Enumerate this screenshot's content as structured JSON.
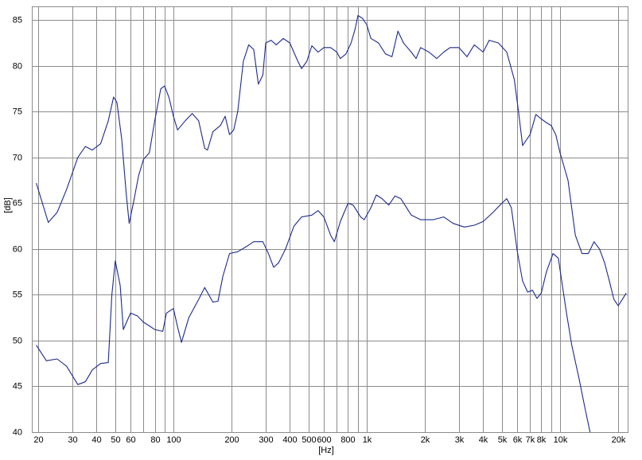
{
  "chart_data": {
    "type": "line",
    "xlabel": "[Hz]",
    "ylabel": "[dB]",
    "xscale": "log",
    "grid": true,
    "xlim": [
      18.5,
      22600
    ],
    "ylim": [
      40,
      86.5
    ],
    "yticks": [
      40,
      45,
      50,
      55,
      60,
      65,
      70,
      75,
      80,
      85
    ],
    "xticks": [
      20,
      30,
      40,
      50,
      60,
      80,
      100,
      200,
      300,
      400,
      500,
      600,
      800,
      {
        "value": 1000,
        "label": "1k"
      },
      {
        "value": 2000,
        "label": "2k"
      },
      {
        "value": 3000,
        "label": "3k"
      },
      {
        "value": 4000,
        "label": "4k"
      },
      {
        "value": 5000,
        "label": "5k"
      },
      {
        "value": 6000,
        "label": "6k"
      },
      {
        "value": 7000,
        "label": "7k"
      },
      {
        "value": 8000,
        "label": "8k"
      },
      {
        "value": 10000,
        "label": "10k"
      },
      {
        "value": 20000,
        "label": "20k"
      }
    ],
    "xgrid": [
      70,
      90,
      700,
      900,
      9000
    ],
    "series": [
      {
        "color": "#1c2a8c",
        "x": [
          19.5,
          22.5,
          25,
          28,
          32,
          35,
          38,
          42,
          46,
          49,
          51,
          54,
          57,
          59,
          62,
          66,
          70,
          75,
          80,
          86,
          90,
          95,
          100,
          105,
          115,
          125,
          135,
          145,
          150,
          160,
          175,
          185,
          195,
          205,
          215,
          230,
          245,
          260,
          275,
          290,
          300,
          320,
          340,
          370,
          400,
          440,
          460,
          490,
          520,
          560,
          600,
          650,
          700,
          730,
          780,
          830,
          870,
          900,
          950,
          1000,
          1050,
          1150,
          1250,
          1350,
          1450,
          1550,
          1700,
          1800,
          1900,
          2100,
          2300,
          2500,
          2700,
          3000,
          3300,
          3600,
          4000,
          4300,
          4800,
          5300,
          5800,
          6100,
          6400,
          7000,
          7500,
          8000,
          8500,
          9000,
          9500,
          10000,
          11000,
          12000,
          13000,
          14000,
          15000,
          16000,
          17000,
          18000,
          19000,
          20000,
          21000,
          22000
        ],
        "values": [
          67.2,
          62.9,
          64,
          66.5,
          70,
          71.2,
          70.8,
          71.5,
          74,
          76.6,
          76,
          72,
          66,
          62.8,
          65,
          68,
          69.8,
          70.5,
          74,
          77.5,
          77.8,
          76.5,
          74.5,
          73,
          74,
          74.8,
          74,
          71,
          70.8,
          72.8,
          73.5,
          74.5,
          72.5,
          73,
          75,
          80.5,
          82.3,
          81.8,
          78,
          79,
          82.5,
          82.8,
          82.3,
          83,
          82.5,
          80.5,
          79.7,
          80.5,
          82.2,
          81.5,
          82,
          82,
          81.5,
          80.8,
          81.3,
          82.5,
          84,
          85.5,
          85.2,
          84.5,
          83,
          82.5,
          81.3,
          81,
          83.8,
          82.5,
          81.5,
          80.8,
          82,
          81.5,
          80.8,
          81.5,
          82,
          82,
          81,
          82.3,
          81.5,
          82.8,
          82.5,
          81.5,
          78.5,
          75,
          71.3,
          72.5,
          74.7,
          74.2,
          73.8,
          73.5,
          72.5,
          70.5,
          67.5,
          61.5,
          59.5,
          59.5,
          60.8,
          60,
          58.5,
          56.5,
          54.5,
          53.8,
          54.5,
          55.2
        ]
      },
      {
        "color": "#1c2a8c",
        "x": [
          19.5,
          22,
          25,
          28,
          32,
          35,
          38,
          42,
          46,
          48,
          50,
          53,
          55,
          60,
          65,
          70,
          75,
          80,
          88,
          92,
          100,
          105,
          110,
          120,
          135,
          145,
          160,
          170,
          180,
          195,
          215,
          240,
          260,
          290,
          310,
          330,
          350,
          380,
          420,
          460,
          520,
          560,
          600,
          650,
          680,
          730,
          800,
          850,
          930,
          970,
          1050,
          1120,
          1200,
          1300,
          1400,
          1500,
          1700,
          1900,
          2200,
          2500,
          2800,
          3200,
          3600,
          4000,
          4500,
          5000,
          5300,
          5600,
          6000,
          6400,
          6800,
          7200,
          7600,
          8000,
          8500,
          9200,
          9800,
          10800,
          11500,
          12500,
          13500,
          14300
        ],
        "values": [
          49.5,
          47.8,
          48,
          47.2,
          45.2,
          45.5,
          46.8,
          47.5,
          47.6,
          55,
          58.7,
          56,
          51.2,
          53,
          52.7,
          52,
          51.6,
          51.2,
          51,
          53,
          53.5,
          51.5,
          49.8,
          52.5,
          54.5,
          55.8,
          54.2,
          54.3,
          57,
          59.5,
          59.7,
          60.3,
          60.8,
          60.8,
          59.5,
          58,
          58.5,
          60,
          62.5,
          63.5,
          63.7,
          64.2,
          63.5,
          61.5,
          60.8,
          63,
          65,
          64.8,
          63.5,
          63.2,
          64.5,
          65.9,
          65.5,
          64.8,
          65.8,
          65.5,
          63.7,
          63.2,
          63.2,
          63.5,
          62.8,
          62.4,
          62.6,
          63,
          64,
          65,
          65.5,
          64.5,
          59.8,
          56.5,
          55.3,
          55.5,
          54.6,
          55.2,
          57.5,
          59.5,
          59,
          53,
          49.5,
          46,
          42.5,
          40
        ]
      }
    ]
  }
}
